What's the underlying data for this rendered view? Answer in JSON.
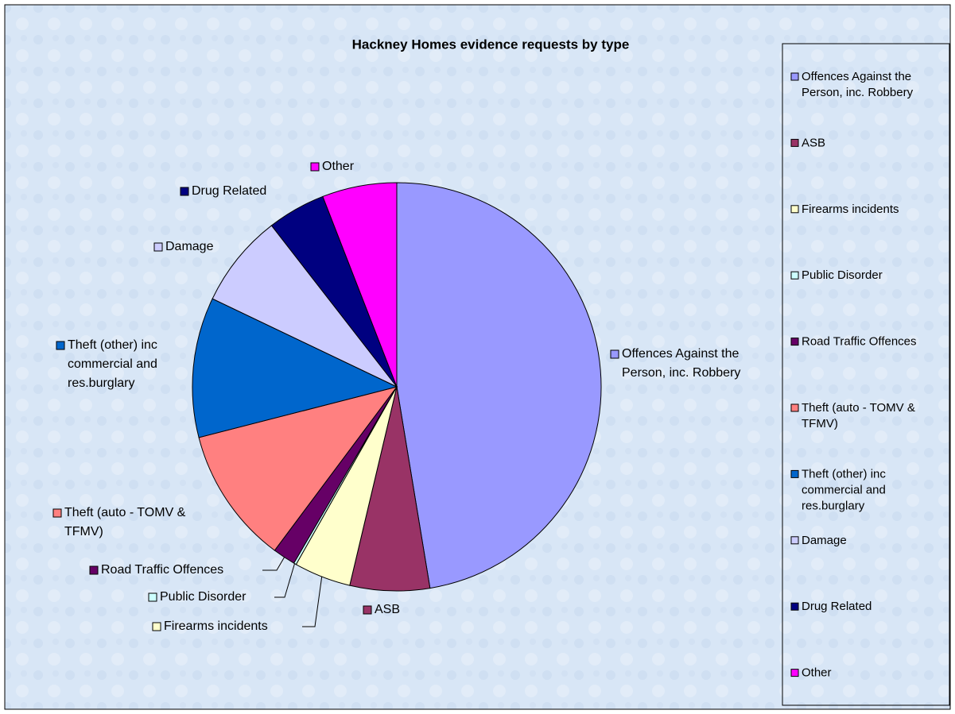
{
  "chart_data": {
    "type": "pie",
    "title": "Hackney Homes evidence requests by type",
    "categories": [
      "Offences Against the Person, inc. Robbery",
      "ASB",
      "Firearms incidents",
      "Public Disorder",
      "Road Traffic Offences",
      "Theft (auto - TOMV & TFMV)",
      "Theft (other) inc commercial and res.burglary",
      "Damage",
      "Drug Related",
      "Other"
    ],
    "values": [
      47.4,
      6.3,
      4.5,
      0.2,
      1.8,
      10.8,
      11.1,
      7.4,
      4.6,
      5.9
    ],
    "colors": [
      "#9999ff",
      "#993366",
      "#ffffcc",
      "#ccffff",
      "#660066",
      "#ff8080",
      "#0066cc",
      "#ccccff",
      "#000080",
      "#ff00ff"
    ],
    "legend": "right"
  }
}
